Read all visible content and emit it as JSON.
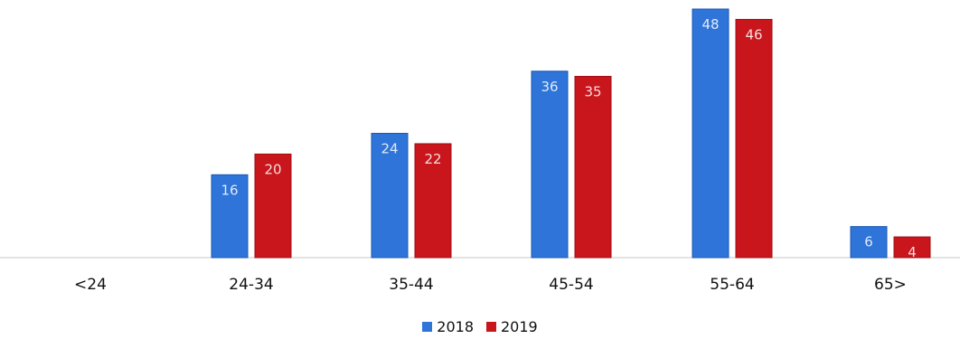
{
  "chart_data": {
    "type": "bar",
    "categories": [
      "<24",
      "24-34",
      "35-44",
      "45-54",
      "55-64",
      "65>"
    ],
    "series": [
      {
        "name": "2018",
        "color": "#2f74d8",
        "values": [
          0,
          16,
          24,
          36,
          48,
          6
        ]
      },
      {
        "name": "2019",
        "color": "#c8161c",
        "values": [
          0,
          20,
          22,
          35,
          46,
          4
        ]
      }
    ],
    "data_labels": [
      [
        null,
        "16",
        "24",
        "36",
        "48",
        "6"
      ],
      [
        null,
        "20",
        "22",
        "35",
        "46",
        "4"
      ]
    ],
    "ylim": [
      0,
      48
    ],
    "grid": false,
    "legend_position": "bottom"
  }
}
